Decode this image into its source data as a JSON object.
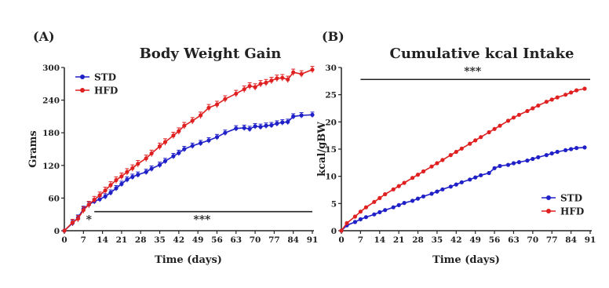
{
  "chart_data": [
    {
      "type": "line",
      "panel": "(A)",
      "title": "Body Weight Gain",
      "xlabel": "Time (days)",
      "ylabel": "Grams",
      "xlim": [
        0,
        91
      ],
      "ylim": [
        0,
        300
      ],
      "xticks": [
        0,
        7,
        14,
        21,
        28,
        35,
        42,
        49,
        56,
        63,
        70,
        77,
        84,
        91
      ],
      "yticks": [
        0,
        60,
        120,
        180,
        240,
        300
      ],
      "legend_position": "top-left",
      "annotations": [
        {
          "text": "*",
          "x": 9,
          "y": 14
        },
        {
          "text": "***",
          "x": 50.5,
          "y": 14,
          "bar_from": 11,
          "bar_to": 91,
          "bar_y": 35
        }
      ],
      "series": [
        {
          "name": "STD",
          "color": "#2020c8",
          "marker": "circle",
          "x": [
            0,
            3,
            5,
            7,
            9,
            11,
            13,
            15,
            17,
            19,
            21,
            23,
            25,
            27,
            30,
            32,
            35,
            37,
            40,
            42,
            44,
            47,
            50,
            53,
            56,
            59,
            63,
            66,
            68,
            70,
            72,
            74,
            76,
            78,
            80,
            82,
            84,
            87,
            91
          ],
          "y": [
            0,
            14,
            24,
            40,
            48,
            54,
            58,
            63,
            70,
            78,
            86,
            94,
            99,
            103,
            108,
            114,
            121,
            128,
            137,
            143,
            150,
            156,
            161,
            166,
            172,
            180,
            188,
            189,
            187,
            192,
            191,
            193,
            194,
            197,
            199,
            200,
            210,
            212,
            213
          ],
          "error": 5
        },
        {
          "name": "HFD",
          "color": "#e02020",
          "marker": "circle",
          "x": [
            0,
            3,
            5,
            7,
            9,
            11,
            13,
            15,
            17,
            19,
            21,
            23,
            25,
            27,
            30,
            32,
            35,
            37,
            40,
            42,
            44,
            47,
            50,
            53,
            56,
            59,
            63,
            66,
            68,
            70,
            72,
            74,
            76,
            78,
            80,
            82,
            84,
            87,
            91
          ],
          "y": [
            0,
            15,
            22,
            38,
            48,
            57,
            65,
            74,
            84,
            93,
            100,
            108,
            115,
            123,
            133,
            142,
            155,
            163,
            175,
            183,
            193,
            202,
            212,
            226,
            232,
            242,
            252,
            260,
            266,
            264,
            270,
            272,
            276,
            280,
            281,
            278,
            291,
            288,
            296
          ],
          "error": 6
        }
      ]
    },
    {
      "type": "line",
      "panel": "(B)",
      "title": "Cumulative kcal Intake",
      "xlabel": "Time (days)",
      "ylabel": "kcal/gBW",
      "xlim": [
        0,
        91
      ],
      "ylim": [
        0,
        30
      ],
      "xticks": [
        0,
        7,
        14,
        21,
        28,
        35,
        42,
        49,
        56,
        63,
        70,
        77,
        84,
        91
      ],
      "yticks": [
        0,
        5,
        10,
        15,
        20,
        25,
        30
      ],
      "legend_position": "bottom-right",
      "annotations": [
        {
          "text": "***",
          "x": 48,
          "y": 28.6,
          "bar_from": 7,
          "bar_to": 91,
          "bar_y": 27.8
        }
      ],
      "series": [
        {
          "name": "STD",
          "color": "#2020c8",
          "marker": "circle",
          "x": [
            0,
            2,
            5,
            7,
            9,
            12,
            14,
            16,
            19,
            21,
            23,
            26,
            28,
            30,
            33,
            35,
            37,
            40,
            42,
            44,
            47,
            49,
            51,
            54,
            56,
            58,
            61,
            63,
            65,
            68,
            70,
            72,
            75,
            77,
            79,
            82,
            84,
            86,
            89
          ],
          "y": [
            0,
            1.0,
            1.6,
            2.1,
            2.5,
            3.0,
            3.4,
            3.8,
            4.3,
            4.7,
            5.1,
            5.5,
            5.9,
            6.3,
            6.8,
            7.2,
            7.6,
            8.1,
            8.5,
            8.9,
            9.4,
            9.8,
            10.2,
            10.6,
            11.5,
            11.9,
            12.1,
            12.4,
            12.6,
            12.9,
            13.2,
            13.5,
            13.9,
            14.2,
            14.5,
            14.8,
            15.0,
            15.2,
            15.3
          ]
        },
        {
          "name": "HFD",
          "color": "#e02020",
          "marker": "circle",
          "x": [
            0,
            2,
            5,
            7,
            9,
            12,
            14,
            16,
            19,
            21,
            23,
            26,
            28,
            30,
            33,
            35,
            37,
            40,
            42,
            44,
            47,
            49,
            51,
            54,
            56,
            58,
            61,
            63,
            65,
            68,
            70,
            72,
            75,
            77,
            79,
            82,
            84,
            86,
            89
          ],
          "y": [
            0,
            1.4,
            2.6,
            3.5,
            4.3,
            5.3,
            6.0,
            6.7,
            7.6,
            8.2,
            8.8,
            9.7,
            10.3,
            10.9,
            11.8,
            12.4,
            13.0,
            13.9,
            14.5,
            15.1,
            16.0,
            16.6,
            17.2,
            18.1,
            18.7,
            19.3,
            20.2,
            20.8,
            21.3,
            22.0,
            22.5,
            23.0,
            23.7,
            24.1,
            24.5,
            25.0,
            25.4,
            25.8,
            26.1
          ]
        }
      ]
    }
  ]
}
